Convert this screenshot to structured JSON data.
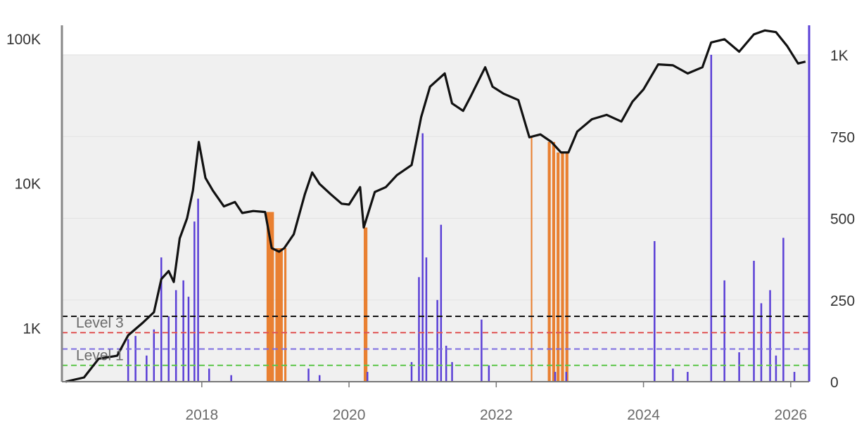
{
  "chart_data": {
    "type": "line",
    "title": "",
    "xlabel": "",
    "ylabel": "",
    "x_range": [
      2016.1,
      2026.25
    ],
    "x_ticks": [
      "2018",
      "2020",
      "2022",
      "2024",
      "2026"
    ],
    "y_left": {
      "scale": "log",
      "range": [
        430,
        78000
      ],
      "ticks": [
        "100K",
        "10K",
        "1K"
      ]
    },
    "y_right": {
      "scale": "linear",
      "range": [
        0,
        1000
      ],
      "ticks": [
        "1K",
        "750",
        "500",
        "250",
        "0"
      ]
    },
    "plot_background": "#f0f0f0",
    "price_series": {
      "name": "",
      "color": "#111111",
      "points": [
        [
          2016.15,
          430
        ],
        [
          2016.4,
          460
        ],
        [
          2016.6,
          620
        ],
        [
          2016.85,
          650
        ],
        [
          2017.0,
          900
        ],
        [
          2017.2,
          1100
        ],
        [
          2017.35,
          1300
        ],
        [
          2017.45,
          2200
        ],
        [
          2017.55,
          2500
        ],
        [
          2017.62,
          2100
        ],
        [
          2017.7,
          4200
        ],
        [
          2017.8,
          5800
        ],
        [
          2017.88,
          9000
        ],
        [
          2017.96,
          19500
        ],
        [
          2018.05,
          11000
        ],
        [
          2018.15,
          9000
        ],
        [
          2018.3,
          7000
        ],
        [
          2018.45,
          7500
        ],
        [
          2018.55,
          6300
        ],
        [
          2018.7,
          6500
        ],
        [
          2018.86,
          6400
        ],
        [
          2018.95,
          3600
        ],
        [
          2019.05,
          3400
        ],
        [
          2019.12,
          3600
        ],
        [
          2019.25,
          4500
        ],
        [
          2019.4,
          8500
        ],
        [
          2019.5,
          12000
        ],
        [
          2019.6,
          10000
        ],
        [
          2019.75,
          8500
        ],
        [
          2019.9,
          7300
        ],
        [
          2020.0,
          7200
        ],
        [
          2020.15,
          9500
        ],
        [
          2020.2,
          5000
        ],
        [
          2020.35,
          8800
        ],
        [
          2020.5,
          9500
        ],
        [
          2020.65,
          11500
        ],
        [
          2020.85,
          13500
        ],
        [
          2020.98,
          29000
        ],
        [
          2021.1,
          47000
        ],
        [
          2021.3,
          58000
        ],
        [
          2021.4,
          36000
        ],
        [
          2021.55,
          32000
        ],
        [
          2021.65,
          40000
        ],
        [
          2021.85,
          64000
        ],
        [
          2021.95,
          47000
        ],
        [
          2022.1,
          42000
        ],
        [
          2022.3,
          38000
        ],
        [
          2022.45,
          21000
        ],
        [
          2022.6,
          22000
        ],
        [
          2022.75,
          19500
        ],
        [
          2022.88,
          16500
        ],
        [
          2022.98,
          16500
        ],
        [
          2023.1,
          23000
        ],
        [
          2023.3,
          28000
        ],
        [
          2023.5,
          30000
        ],
        [
          2023.7,
          27000
        ],
        [
          2023.85,
          37000
        ],
        [
          2024.0,
          45000
        ],
        [
          2024.2,
          67000
        ],
        [
          2024.4,
          66000
        ],
        [
          2024.6,
          58000
        ],
        [
          2024.8,
          64000
        ],
        [
          2024.92,
          95000
        ],
        [
          2025.1,
          100000
        ],
        [
          2025.3,
          82000
        ],
        [
          2025.5,
          108000
        ],
        [
          2025.65,
          115000
        ],
        [
          2025.8,
          112000
        ],
        [
          2025.95,
          90000
        ],
        [
          2026.1,
          68000
        ],
        [
          2026.2,
          70000
        ]
      ]
    },
    "indicator_series": {
      "name": "",
      "color": "#5a3fd6",
      "spikes": [
        [
          2017.0,
          130
        ],
        [
          2017.1,
          140
        ],
        [
          2017.25,
          80
        ],
        [
          2017.35,
          160
        ],
        [
          2017.45,
          380
        ],
        [
          2017.55,
          200
        ],
        [
          2017.65,
          280
        ],
        [
          2017.75,
          310
        ],
        [
          2017.82,
          260
        ],
        [
          2017.9,
          490
        ],
        [
          2017.95,
          560
        ],
        [
          2018.1,
          40
        ],
        [
          2018.4,
          20
        ],
        [
          2019.45,
          40
        ],
        [
          2019.6,
          20
        ],
        [
          2020.25,
          30
        ],
        [
          2020.85,
          60
        ],
        [
          2020.95,
          320
        ],
        [
          2021.0,
          760
        ],
        [
          2021.05,
          380
        ],
        [
          2021.2,
          250
        ],
        [
          2021.25,
          480
        ],
        [
          2021.32,
          110
        ],
        [
          2021.4,
          60
        ],
        [
          2021.8,
          190
        ],
        [
          2021.9,
          50
        ],
        [
          2022.8,
          30
        ],
        [
          2022.95,
          30
        ],
        [
          2024.15,
          430
        ],
        [
          2024.4,
          40
        ],
        [
          2024.6,
          30
        ],
        [
          2024.92,
          1000
        ],
        [
          2025.1,
          310
        ],
        [
          2025.3,
          90
        ],
        [
          2025.5,
          370
        ],
        [
          2025.6,
          240
        ],
        [
          2025.72,
          280
        ],
        [
          2025.8,
          80
        ],
        [
          2025.9,
          440
        ],
        [
          2026.05,
          30
        ]
      ]
    },
    "highlight_bands": {
      "color": "#e8731c",
      "ranges": [
        [
          2018.88,
          2018.98
        ],
        [
          2019.0,
          2019.1
        ],
        [
          2019.12,
          2019.15
        ],
        [
          2020.2,
          2020.25
        ],
        [
          2022.47,
          2022.49
        ],
        [
          2022.7,
          2022.74
        ],
        [
          2022.76,
          2022.8
        ],
        [
          2022.82,
          2022.86
        ],
        [
          2022.88,
          2022.92
        ],
        [
          2022.94,
          2022.98
        ]
      ]
    },
    "threshold_lines": [
      {
        "label": "Level 3",
        "value": 200,
        "color": "#111111"
      },
      {
        "label": "",
        "value": 150,
        "color": "#e05555"
      },
      {
        "label": "Level 1",
        "value": 100,
        "color": "#7a6ae0"
      },
      {
        "label": "",
        "value": 50,
        "color": "#5cc64a"
      }
    ],
    "grid": true,
    "legend": "none"
  }
}
